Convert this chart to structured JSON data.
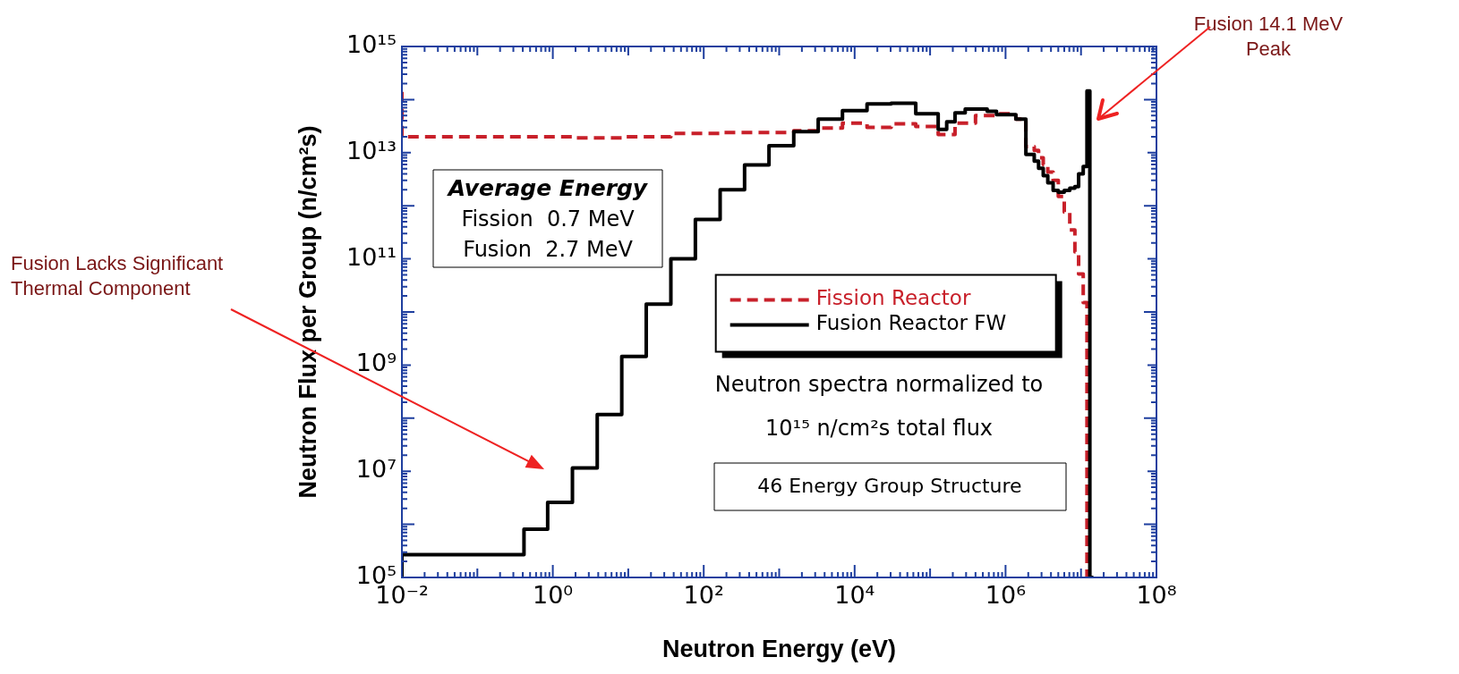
{
  "chart_data": {
    "type": "step",
    "xlabel": "Neutron Energy (eV)",
    "ylabel": "Neutron Flux per Group (n/cm²s)",
    "log": "xy",
    "grid": false,
    "legend": "center right",
    "x": [
      0.01,
      0.415,
      0.855,
      1.82,
      3.88,
      8.2,
      17.3,
      36.7,
      77.5,
      165,
      348,
      733,
      1560,
      3290,
      6900,
      14600,
      30500,
      64600,
      128000,
      166000,
      214000,
      292000,
      400000,
      571000,
      759000,
      1370000,
      1860000,
      2400000,
      2740000,
      3160000,
      3630000,
      4270000,
      5000000,
      6000000,
      7100000,
      8300000,
      9300000,
      10700000,
      12000000,
      13100000,
      14600000
    ],
    "series": [
      {
        "name": "Fission Reactor",
        "color": "#c8202a",
        "line_style": "dashed",
        "values": [
          140000000000000.0,
          20000000000000.0,
          20000000000000.0,
          20000000000000.0,
          19000000000000.0,
          19000000000000.0,
          20000000000000.0,
          20000000000000.0,
          23000000000000.0,
          23000000000000.0,
          24000000000000.0,
          24000000000000.0,
          24000000000000.0,
          26000000000000.0,
          29000000000000.0,
          36000000000000.0,
          30000000000000.0,
          35000000000000.0,
          31000000000000.0,
          22000000000000.0,
          22000000000000.0,
          36000000000000.0,
          36000000000000.0,
          50000000000000.0,
          50000000000000.0,
          54000000000000.0,
          43000000000000.0,
          13000000000000.0,
          11000000000000.0,
          8000000000000.0,
          6000000000000.0,
          4300000000000.0,
          3000000000000.0,
          1500000000000.0,
          760000000000.0,
          350000000000.0,
          135000000000.0,
          52000000000.0,
          15000000000.0,
          100000.0,
          100000.0
        ]
      },
      {
        "name": "Fusion Reactor FW",
        "color": "#000000",
        "line_style": "solid",
        "values": [
          100000.0,
          270000.0,
          810000.0,
          2600000.0,
          11500000.0,
          117000000.0,
          1450000000.0,
          14000000000.0,
          100000000000.0,
          550000000000.0,
          2000000000000.0,
          5900000000000.0,
          13500000000000.0,
          25000000000000.0,
          43000000000000.0,
          62000000000000.0,
          83000000000000.0,
          85000000000000.0,
          54000000000000.0,
          27500000000000.0,
          38000000000000.0,
          56000000000000.0,
          66000000000000.0,
          66000000000000.0,
          60000000000000.0,
          52000000000000.0,
          43000000000000.0,
          9300000000000.0,
          6900000000000.0,
          5100000000000.0,
          3700000000000.0,
          2700000000000.0,
          1950000000000.0,
          1800000000000.0,
          1950000000000.0,
          2150000000000.0,
          2300000000000.0,
          4000000000000.0,
          5500000000000.0,
          145000000000000.0,
          100000.0
        ]
      }
    ],
    "xlim": [
      0.01,
      100000000
    ],
    "xticks": [
      {
        "value": 0.01,
        "label": "10⁻²"
      },
      {
        "value": 1,
        "label": "10⁰"
      },
      {
        "value": 100,
        "label": "10²"
      },
      {
        "value": 10000,
        "label": "10⁴"
      },
      {
        "value": 1000000,
        "label": "10⁶"
      },
      {
        "value": 100000000,
        "label": "10⁸"
      }
    ],
    "ylim": [
      100000,
      1000000000000000
    ],
    "yticks": [
      {
        "value": 100000,
        "label": "10⁵"
      },
      {
        "value": 10000000,
        "label": "10⁷"
      },
      {
        "value": 1000000000,
        "label": "10⁹"
      },
      {
        "value": 100000000000,
        "label": "10¹¹"
      },
      {
        "value": 10000000000000,
        "label": "10¹³"
      },
      {
        "value": 1000000000000000,
        "label": "10¹⁵"
      }
    ],
    "annotations": [
      "Fusion 14.1 MeV Peak",
      "Fusion Lacks Significant Thermal Component",
      "Average Energy",
      "Fission  0.7 MeV",
      "Fusion  2.7 MeV",
      "Neutron spectra normalized to",
      "10¹⁵ n/cm²s total flux",
      "46 Energy Group Structure"
    ]
  }
}
